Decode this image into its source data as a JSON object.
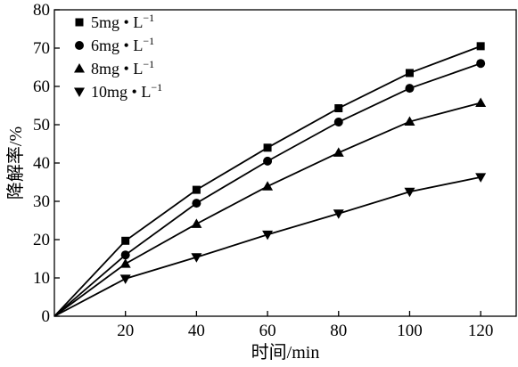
{
  "chart_data": {
    "type": "line",
    "xlabel": "时间/min",
    "ylabel": "降解率/%",
    "xlim": [
      0,
      130
    ],
    "ylim": [
      0,
      80
    ],
    "xticks": [
      20,
      40,
      60,
      80,
      100,
      120
    ],
    "yticks": [
      0,
      10,
      20,
      30,
      40,
      50,
      60,
      70,
      80
    ],
    "grid": false,
    "legend_position": "top-left",
    "series": [
      {
        "name": "5mg · L⁻¹",
        "label_main": "5mg",
        "label_unit": "L",
        "label_sup": "−1",
        "marker": "square",
        "x": [
          0,
          20,
          40,
          60,
          80,
          100,
          120
        ],
        "y": [
          0,
          19.7,
          33,
          44,
          54.3,
          63.5,
          70.5
        ]
      },
      {
        "name": "6mg · L⁻¹",
        "label_main": "6mg",
        "label_unit": "L",
        "label_sup": "−1",
        "marker": "circle",
        "x": [
          0,
          20,
          40,
          60,
          80,
          100,
          120
        ],
        "y": [
          0,
          16,
          29.5,
          40.5,
          50.7,
          59.5,
          66
        ]
      },
      {
        "name": "8mg · L⁻¹",
        "label_main": "8mg",
        "label_unit": "L",
        "label_sup": "−1",
        "marker": "triangle-up",
        "x": [
          0,
          20,
          40,
          60,
          80,
          100,
          120
        ],
        "y": [
          0,
          13.7,
          24.1,
          33.9,
          42.7,
          50.8,
          55.7
        ]
      },
      {
        "name": "10mg · L⁻¹",
        "label_main": "10mg",
        "label_unit": "L",
        "label_sup": "−1",
        "marker": "triangle-down",
        "x": [
          0,
          20,
          40,
          60,
          80,
          100,
          120
        ],
        "y": [
          0,
          9.8,
          15.4,
          21.3,
          26.8,
          32.5,
          36.3
        ]
      }
    ]
  }
}
